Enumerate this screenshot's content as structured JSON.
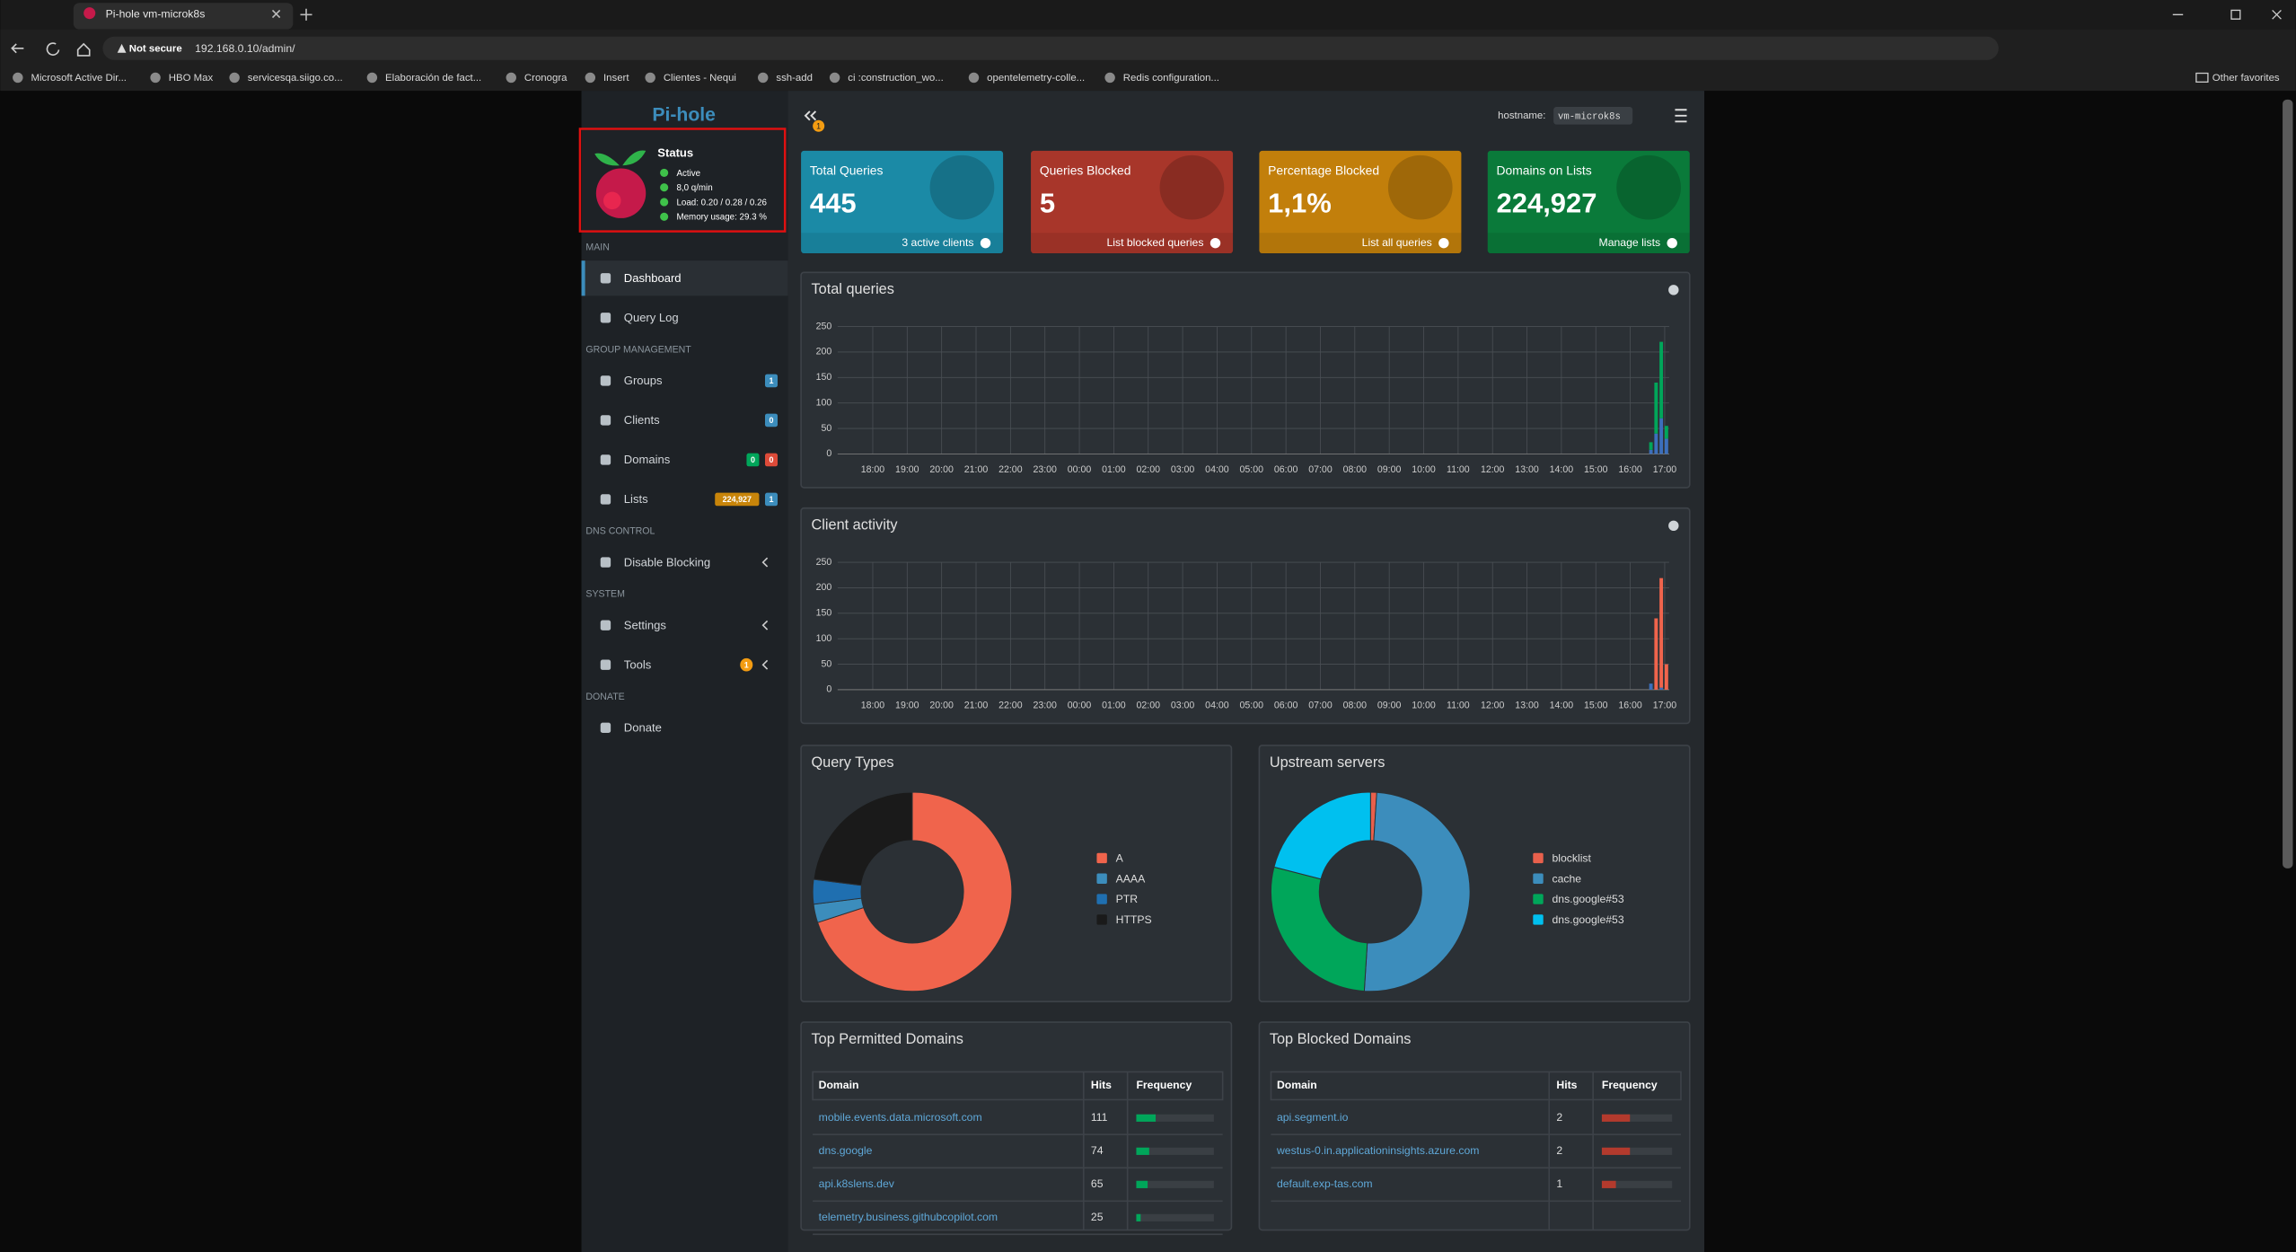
{
  "browser": {
    "tab_title": "Pi-hole vm-microk8s",
    "security": "Not secure",
    "url": "192.168.0.10/admin/",
    "bookmarks": [
      "Microsoft Active Dir...",
      "HBO Max",
      "servicesqa.siigo.co...",
      "Elaboración de fact...",
      "Cronogra",
      "Insert",
      "Clientes - Nequi",
      "ssh-add",
      "ci :construction_wo...",
      "opentelemetry-colle...",
      "Redis configuration..."
    ],
    "other_favorites": "Other favorites"
  },
  "sidebar": {
    "brand": "Pi-hole",
    "status": {
      "title": "Status",
      "items": [
        "Active",
        "8,0 q/min",
        "Load: 0.20 / 0.28 / 0.26",
        "Memory usage: 29.3 %"
      ]
    },
    "sections": [
      {
        "title": "MAIN",
        "items": [
          {
            "label": "Dashboard"
          },
          {
            "label": "Query Log"
          }
        ]
      },
      {
        "title": "GROUP MANAGEMENT",
        "items": [
          {
            "label": "Groups",
            "badges": [
              {
                "text": "1",
                "color": "#3c8dbc"
              }
            ]
          },
          {
            "label": "Clients",
            "badges": [
              {
                "text": "0",
                "color": "#3c8dbc"
              }
            ]
          },
          {
            "label": "Domains",
            "badges": [
              {
                "text": "0",
                "color": "#00a65a"
              },
              {
                "text": "0",
                "color": "#dd4b39"
              }
            ]
          },
          {
            "label": "Lists",
            "badges": [
              {
                "text": "224,927",
                "color": "#c8850a"
              },
              {
                "text": "1",
                "color": "#3c8dbc"
              }
            ]
          }
        ]
      },
      {
        "title": "DNS CONTROL",
        "items": [
          {
            "label": "Disable Blocking",
            "expandable": true
          }
        ]
      },
      {
        "title": "SYSTEM",
        "items": [
          {
            "label": "Settings",
            "expandable": true
          },
          {
            "label": "Tools",
            "expandable": true,
            "badges": [
              {
                "text": "1",
                "color": "#f39c12"
              }
            ]
          }
        ]
      },
      {
        "title": "DONATE",
        "items": [
          {
            "label": "Donate"
          }
        ]
      }
    ]
  },
  "header": {
    "hostname_label": "hostname:",
    "hostname": "vm-microk8s",
    "notifications": "1"
  },
  "stats": [
    {
      "title": "Total Queries",
      "value": "445",
      "link": "3 active clients",
      "color": "#1b8aa6"
    },
    {
      "title": "Queries Blocked",
      "value": "5",
      "link": "List blocked queries",
      "color": "#a8362a"
    },
    {
      "title": "Percentage Blocked",
      "value": "1,1%",
      "link": "List all queries",
      "color": "#c27f0b"
    },
    {
      "title": "Domains on Lists",
      "value": "224,927",
      "link": "Manage lists",
      "color": "#0a7a3a"
    }
  ],
  "chart_data": [
    {
      "type": "bar",
      "title": "Total queries",
      "stacked": true,
      "grid": true,
      "x": [
        22.6,
        22.75,
        22.9,
        23.05
      ],
      "xlim": [
        -1.02,
        23.13
      ],
      "xticks": [
        {
          "value": 0,
          "label": "18:00"
        },
        {
          "value": 1,
          "label": "19:00"
        },
        {
          "value": 2,
          "label": "20:00"
        },
        {
          "value": 3,
          "label": "21:00"
        },
        {
          "value": 4,
          "label": "22:00"
        },
        {
          "value": 5,
          "label": "23:00"
        },
        {
          "value": 6,
          "label": "00:00"
        },
        {
          "value": 7,
          "label": "01:00"
        },
        {
          "value": 8,
          "label": "02:00"
        },
        {
          "value": 9,
          "label": "03:00"
        },
        {
          "value": 10,
          "label": "04:00"
        },
        {
          "value": 11,
          "label": "05:00"
        },
        {
          "value": 12,
          "label": "06:00"
        },
        {
          "value": 13,
          "label": "07:00"
        },
        {
          "value": 14,
          "label": "08:00"
        },
        {
          "value": 15,
          "label": "09:00"
        },
        {
          "value": 16,
          "label": "10:00"
        },
        {
          "value": 17,
          "label": "11:00"
        },
        {
          "value": 18,
          "label": "12:00"
        },
        {
          "value": 19,
          "label": "13:00"
        },
        {
          "value": 20,
          "label": "14:00"
        },
        {
          "value": 21,
          "label": "15:00"
        },
        {
          "value": 22,
          "label": "16:00"
        },
        {
          "value": 23,
          "label": "17:00"
        }
      ],
      "ylim": [
        0,
        250
      ],
      "yticks": [
        0,
        50,
        100,
        150,
        200,
        250
      ],
      "series": [
        {
          "color": "#3c6fbc",
          "values": [
            8,
            40,
            70,
            30
          ]
        },
        {
          "color": "#00a65a",
          "values": [
            15,
            100,
            150,
            25
          ]
        }
      ]
    },
    {
      "type": "bar",
      "title": "Client activity",
      "stacked": true,
      "grid": true,
      "x": [
        22.6,
        22.75,
        22.9,
        23.05
      ],
      "xlim": [
        -1.02,
        23.13
      ],
      "xticks": [
        {
          "value": 0,
          "label": "18:00"
        },
        {
          "value": 1,
          "label": "19:00"
        },
        {
          "value": 2,
          "label": "20:00"
        },
        {
          "value": 3,
          "label": "21:00"
        },
        {
          "value": 4,
          "label": "22:00"
        },
        {
          "value": 5,
          "label": "23:00"
        },
        {
          "value": 6,
          "label": "00:00"
        },
        {
          "value": 7,
          "label": "01:00"
        },
        {
          "value": 8,
          "label": "02:00"
        },
        {
          "value": 9,
          "label": "03:00"
        },
        {
          "value": 10,
          "label": "04:00"
        },
        {
          "value": 11,
          "label": "05:00"
        },
        {
          "value": 12,
          "label": "06:00"
        },
        {
          "value": 13,
          "label": "07:00"
        },
        {
          "value": 14,
          "label": "08:00"
        },
        {
          "value": 15,
          "label": "09:00"
        },
        {
          "value": 16,
          "label": "10:00"
        },
        {
          "value": 17,
          "label": "11:00"
        },
        {
          "value": 18,
          "label": "12:00"
        },
        {
          "value": 19,
          "label": "13:00"
        },
        {
          "value": 20,
          "label": "14:00"
        },
        {
          "value": 21,
          "label": "15:00"
        },
        {
          "value": 22,
          "label": "16:00"
        },
        {
          "value": 23,
          "label": "17:00"
        }
      ],
      "ylim": [
        0,
        250
      ],
      "yticks": [
        0,
        50,
        100,
        150,
        200,
        250
      ],
      "series": [
        {
          "color": "#3c6fbc",
          "values": [
            12,
            0,
            4,
            0
          ]
        },
        {
          "color": "#f0644c",
          "values": [
            0,
            140,
            215,
            50
          ]
        }
      ]
    },
    {
      "type": "pie",
      "title": "Query Types",
      "categories": [
        "A",
        "AAAA",
        "PTR",
        "HTTPS"
      ],
      "values": [
        70,
        3,
        4,
        23
      ],
      "colors": [
        "#f0644c",
        "#3c8dbc",
        "#1f6fb0",
        "#1a1a1a"
      ]
    },
    {
      "type": "pie",
      "title": "Upstream servers",
      "categories": [
        "blocklist",
        "cache",
        "dns.google#53",
        "dns.google#53"
      ],
      "values": [
        1,
        50,
        28,
        21
      ],
      "colors": [
        "#e8604c",
        "#3c8dbc",
        "#00a65a",
        "#00c0ef"
      ]
    }
  ],
  "tables": [
    {
      "title": "Top Permitted Domains",
      "columns": [
        "Domain",
        "Hits",
        "Frequency"
      ],
      "color": "#00a65a",
      "rows": [
        {
          "domain": "mobile.events.data.microsoft.com",
          "hits": 111
        },
        {
          "domain": "dns.google",
          "hits": 74
        },
        {
          "domain": "api.k8slens.dev",
          "hits": 65
        },
        {
          "domain": "telemetry.business.githubcopilot.com",
          "hits": 25
        }
      ]
    },
    {
      "title": "Top Blocked Domains",
      "columns": [
        "Domain",
        "Hits",
        "Frequency"
      ],
      "color": "#b33a2d",
      "rows": [
        {
          "domain": "api.segment.io",
          "hits": 2
        },
        {
          "domain": "westus-0.in.applicationinsights.azure.com",
          "hits": 2
        },
        {
          "domain": "default.exp-tas.com",
          "hits": 1
        }
      ]
    }
  ]
}
